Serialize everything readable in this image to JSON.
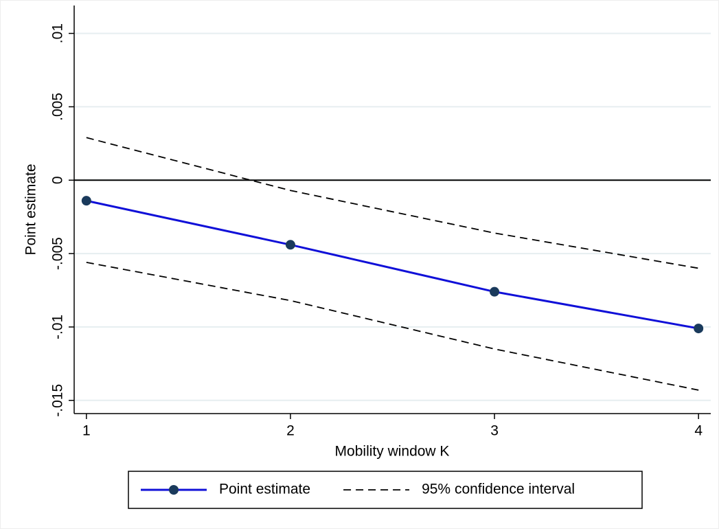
{
  "chart_data": {
    "type": "line",
    "x_label": "Mobility window K",
    "y_label": "Point estimate",
    "x": [
      1,
      2,
      3,
      4
    ],
    "series": [
      {
        "name": "Point estimate",
        "color": "#1010d8",
        "marker_color": "#1a3a5c",
        "values": [
          -0.0014,
          -0.0044,
          -0.0076,
          -0.0101
        ]
      },
      {
        "name": "95% confidence interval",
        "color": "#000000",
        "dash": true,
        "upper": [
          0.0029,
          -0.0007,
          -0.0036,
          -0.006
        ],
        "lower": [
          -0.0056,
          -0.0082,
          -0.0115,
          -0.0143
        ]
      }
    ],
    "xlim": [
      0.94,
      4.06
    ],
    "xticks": [
      1,
      2,
      3,
      4
    ],
    "ylim": [
      -0.0159,
      0.0119
    ],
    "yticks": [
      {
        "value": -0.015,
        "label": "-.015"
      },
      {
        "value": -0.01,
        "label": "-.01"
      },
      {
        "value": -0.005,
        "label": "-.005"
      },
      0,
      {
        "value": 0.005,
        "label": ".005"
      },
      {
        "value": 0.01,
        "label": ".01"
      }
    ],
    "grid": true,
    "reference_line": 0,
    "legend": "bottom"
  }
}
